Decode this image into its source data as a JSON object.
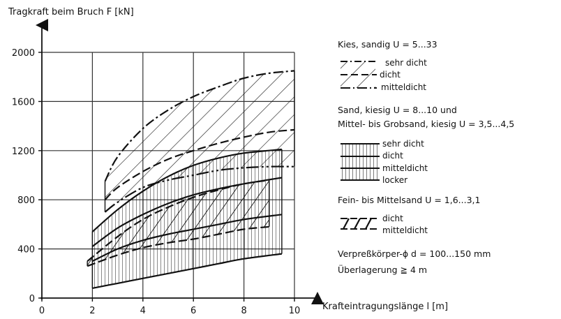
{
  "chart_data": {
    "type": "area",
    "ylabel": "Tragkraft beim Bruch F [kN]",
    "xlabel": "Krafteintragungslänge l [m]",
    "xlim": [
      0,
      10
    ],
    "ylim": [
      0,
      2000
    ],
    "xticks": [
      "0",
      "2",
      "4",
      "6",
      "8",
      "10"
    ],
    "yticks": [
      "0",
      "400",
      "800",
      "1200",
      "1600",
      "2000"
    ],
    "grid": true,
    "bands": [
      {
        "group": "Kies, sandig U = 5...33",
        "hatch": "diagonal",
        "upper": [
          [
            2.5,
            950
          ],
          [
            3,
            1150
          ],
          [
            4,
            1380
          ],
          [
            5,
            1530
          ],
          [
            6,
            1640
          ],
          [
            7,
            1720
          ],
          [
            8,
            1790
          ],
          [
            9,
            1830
          ],
          [
            10,
            1850
          ]
        ],
        "lower": [
          [
            2.5,
            700
          ],
          [
            3,
            780
          ],
          [
            4,
            900
          ],
          [
            5,
            960
          ],
          [
            6,
            1000
          ],
          [
            7,
            1040
          ],
          [
            8,
            1060
          ],
          [
            9,
            1070
          ],
          [
            10,
            1070
          ]
        ]
      },
      {
        "group": "Sand, kiesig U = 8...10 und Mittel- bis Grobsand, kiesig U = 3,5...4,5",
        "hatch": "vertical",
        "upper": [
          [
            2,
            540
          ],
          [
            3,
            720
          ],
          [
            4,
            870
          ],
          [
            5,
            990
          ],
          [
            6,
            1080
          ],
          [
            7,
            1140
          ],
          [
            8,
            1180
          ],
          [
            9.5,
            1210
          ]
        ],
        "lower": [
          [
            2,
            80
          ],
          [
            3,
            120
          ],
          [
            4,
            160
          ],
          [
            5,
            200
          ],
          [
            6,
            240
          ],
          [
            7,
            280
          ],
          [
            8,
            320
          ],
          [
            9.5,
            360
          ]
        ]
      },
      {
        "group": "Fein- bis Mittelsand U = 1,6...3,1",
        "hatch": "diagonal-wide",
        "upper": [
          [
            1.8,
            300
          ],
          [
            3,
            500
          ],
          [
            4,
            640
          ],
          [
            5,
            740
          ],
          [
            6,
            820
          ],
          [
            7,
            880
          ],
          [
            8,
            930
          ],
          [
            9,
            960
          ]
        ],
        "lower": [
          [
            1.8,
            260
          ],
          [
            3,
            350
          ],
          [
            4,
            410
          ],
          [
            5,
            450
          ],
          [
            6,
            480
          ],
          [
            7,
            520
          ],
          [
            8,
            560
          ],
          [
            9,
            580
          ]
        ]
      }
    ],
    "lines": [
      {
        "name": "sehr dicht",
        "group": "Kies, sandig U = 5...33",
        "style": "dash-dot",
        "points": [
          [
            2.5,
            950
          ],
          [
            3,
            1150
          ],
          [
            4,
            1380
          ],
          [
            5,
            1530
          ],
          [
            6,
            1640
          ],
          [
            7,
            1720
          ],
          [
            8,
            1790
          ],
          [
            9,
            1830
          ],
          [
            10,
            1850
          ]
        ]
      },
      {
        "name": "dicht",
        "group": "Kies, sandig U = 5...33",
        "style": "dash",
        "points": [
          [
            2.5,
            800
          ],
          [
            3,
            900
          ],
          [
            4,
            1030
          ],
          [
            5,
            1130
          ],
          [
            6,
            1200
          ],
          [
            7,
            1260
          ],
          [
            8,
            1310
          ],
          [
            9,
            1350
          ],
          [
            10,
            1370
          ]
        ]
      },
      {
        "name": "mitteldicht",
        "group": "Kies, sandig U = 5...33",
        "style": "dash-dot-long",
        "points": [
          [
            2.5,
            700
          ],
          [
            3,
            780
          ],
          [
            4,
            900
          ],
          [
            5,
            960
          ],
          [
            6,
            1000
          ],
          [
            7,
            1040
          ],
          [
            8,
            1060
          ],
          [
            9,
            1070
          ],
          [
            10,
            1070
          ]
        ]
      },
      {
        "name": "sehr dicht",
        "group": "Sand, kiesig",
        "style": "solid",
        "points": [
          [
            2,
            540
          ],
          [
            3,
            720
          ],
          [
            4,
            870
          ],
          [
            5,
            990
          ],
          [
            6,
            1080
          ],
          [
            7,
            1140
          ],
          [
            8,
            1180
          ],
          [
            9.5,
            1210
          ]
        ]
      },
      {
        "name": "dicht",
        "group": "Sand, kiesig",
        "style": "solid",
        "points": [
          [
            2,
            420
          ],
          [
            3,
            570
          ],
          [
            4,
            680
          ],
          [
            5,
            770
          ],
          [
            6,
            840
          ],
          [
            7,
            890
          ],
          [
            8,
            930
          ],
          [
            9.5,
            980
          ]
        ]
      },
      {
        "name": "mitteldicht",
        "group": "Sand, kiesig",
        "style": "solid",
        "points": [
          [
            2,
            300
          ],
          [
            3,
            400
          ],
          [
            4,
            470
          ],
          [
            5,
            520
          ],
          [
            6,
            560
          ],
          [
            7,
            600
          ],
          [
            8,
            640
          ],
          [
            9.5,
            680
          ]
        ]
      },
      {
        "name": "locker",
        "group": "Sand, kiesig",
        "style": "solid",
        "points": [
          [
            2,
            80
          ],
          [
            3,
            120
          ],
          [
            4,
            160
          ],
          [
            5,
            200
          ],
          [
            6,
            240
          ],
          [
            7,
            280
          ],
          [
            8,
            320
          ],
          [
            9.5,
            360
          ]
        ]
      },
      {
        "name": "dicht",
        "group": "Fein- bis Mittelsand U = 1,6...3,1",
        "style": "dash",
        "points": [
          [
            1.8,
            300
          ],
          [
            3,
            500
          ],
          [
            4,
            640
          ],
          [
            5,
            740
          ],
          [
            6,
            820
          ],
          [
            7,
            880
          ],
          [
            8,
            930
          ],
          [
            9,
            960
          ]
        ]
      },
      {
        "name": "mitteldicht",
        "group": "Fein- bis Mittelsand U = 1,6...3,1",
        "style": "dash",
        "points": [
          [
            1.8,
            260
          ],
          [
            3,
            350
          ],
          [
            4,
            410
          ],
          [
            5,
            450
          ],
          [
            6,
            480
          ],
          [
            7,
            520
          ],
          [
            8,
            560
          ],
          [
            9,
            580
          ]
        ]
      }
    ]
  },
  "legend": {
    "group1_title": "Kies, sandig  U = 5...33",
    "group1_items": [
      "sehr dicht",
      "dicht",
      "mitteldicht"
    ],
    "group2_title_line1": "Sand, kiesig  U = 8...10  und",
    "group2_title_line2": "Mittel- bis Grobsand, kiesig  U = 3,5...4,5",
    "group2_items": [
      "sehr dicht",
      "dicht",
      "mitteldicht",
      "locker"
    ],
    "group3_title": "Fein- bis Mittelsand   U = 1,6...3,1",
    "group3_items": [
      "dicht",
      "mitteldicht"
    ],
    "note1": "Verpreßkörper-ϕ  d = 100...150 mm",
    "note2": "Überlagerung ≧ 4 m"
  }
}
